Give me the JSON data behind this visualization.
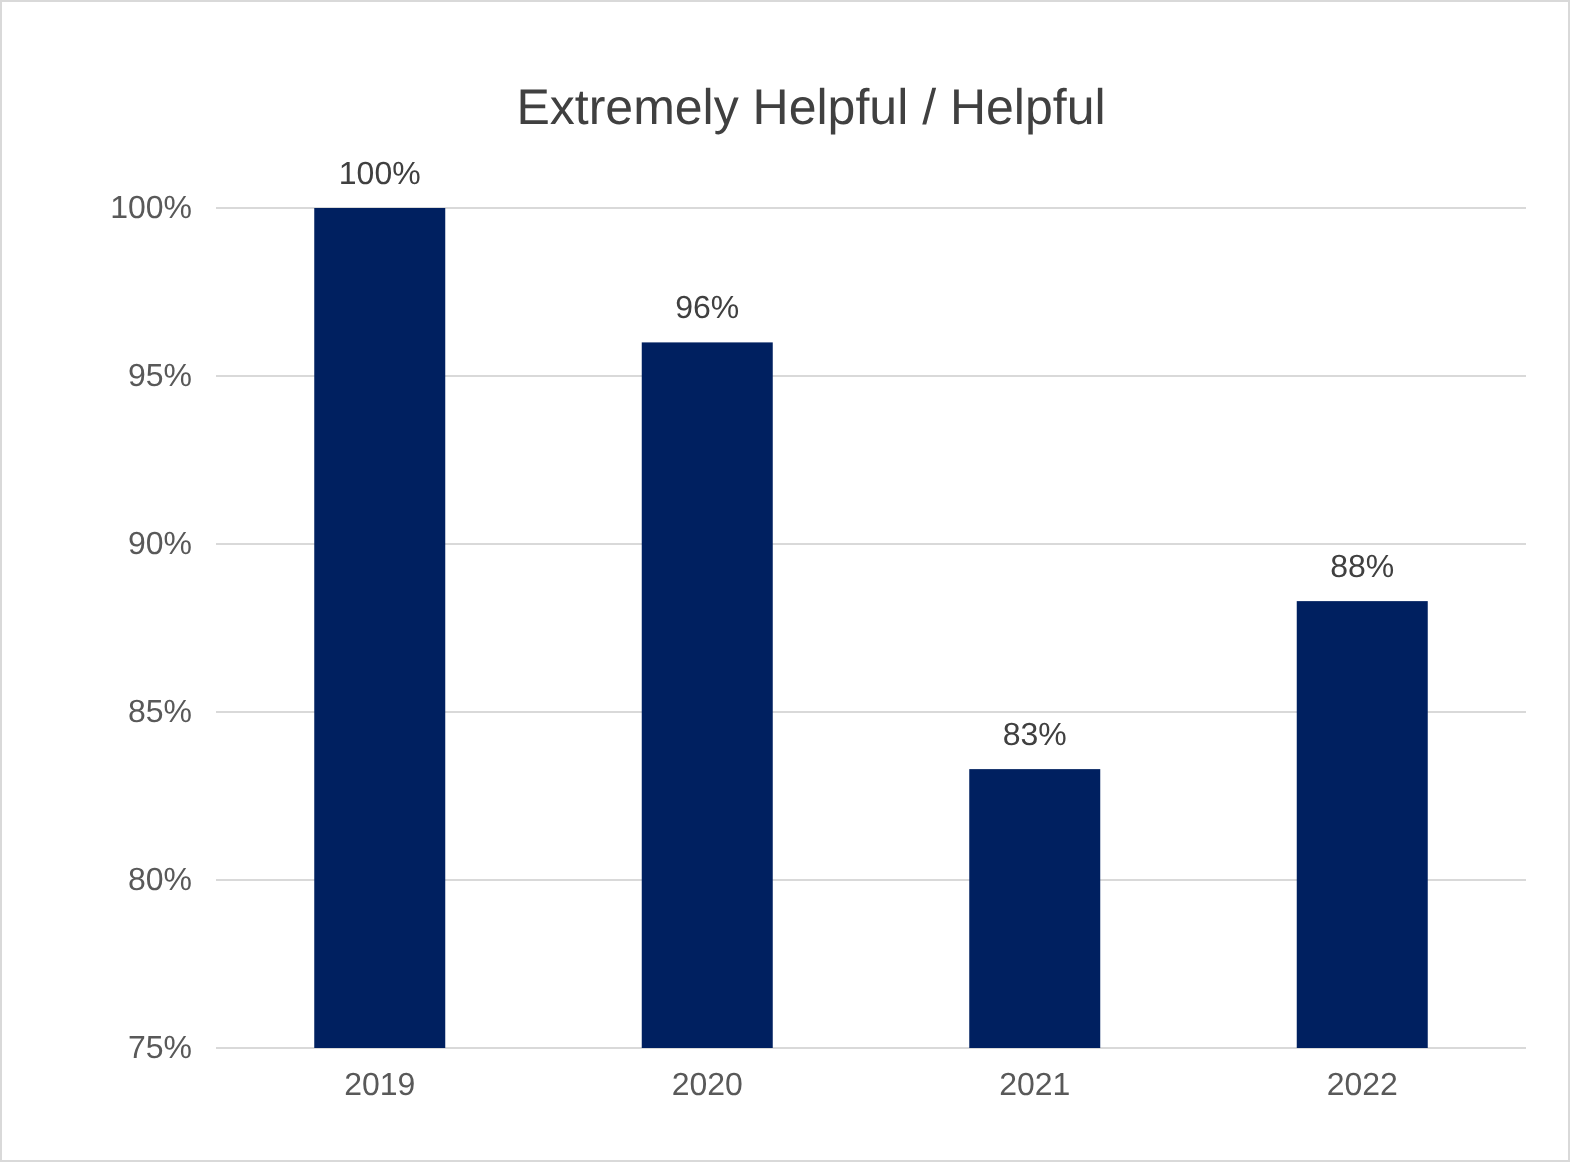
{
  "chart_data": {
    "type": "bar",
    "title": "Extremely Helpful / Helpful",
    "categories": [
      "2019",
      "2020",
      "2021",
      "2022"
    ],
    "values": [
      100,
      96,
      83.3,
      88.3
    ],
    "value_labels": [
      "100%",
      "96%",
      "83%",
      "88%"
    ],
    "color": "#002060",
    "ylim": [
      75,
      100
    ],
    "yticks": [
      {
        "value": 75,
        "label": "75%"
      },
      {
        "value": 80,
        "label": "80%"
      },
      {
        "value": 85,
        "label": "85%"
      },
      {
        "value": 90,
        "label": "90%"
      },
      {
        "value": 95,
        "label": "95%"
      },
      {
        "value": 100,
        "label": "100%"
      }
    ],
    "grid": "y"
  }
}
